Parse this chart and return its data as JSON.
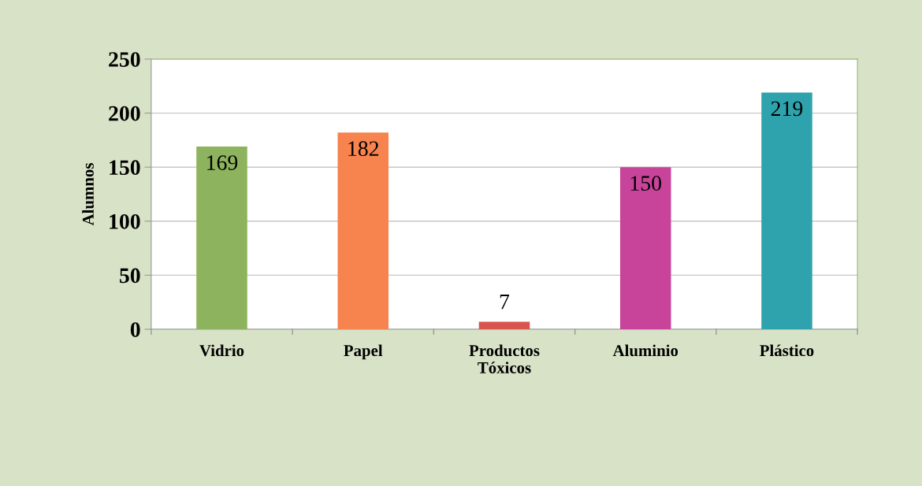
{
  "chart_data": {
    "type": "bar",
    "ylabel": "Alumnos",
    "categories": [
      "Vidrio",
      "Papel",
      "Productos\nTóxicos",
      "Aluminio",
      "Plástico"
    ],
    "values": [
      169,
      182,
      7,
      150,
      219
    ],
    "colors": [
      "#8db35e",
      "#f7834f",
      "#d9534f",
      "#c8449a",
      "#2fa3ad"
    ],
    "ylim": [
      0,
      250
    ],
    "yticks": [
      0,
      50,
      100,
      150,
      200,
      250
    ],
    "grid": "y",
    "data_labels": true,
    "legend": false
  }
}
